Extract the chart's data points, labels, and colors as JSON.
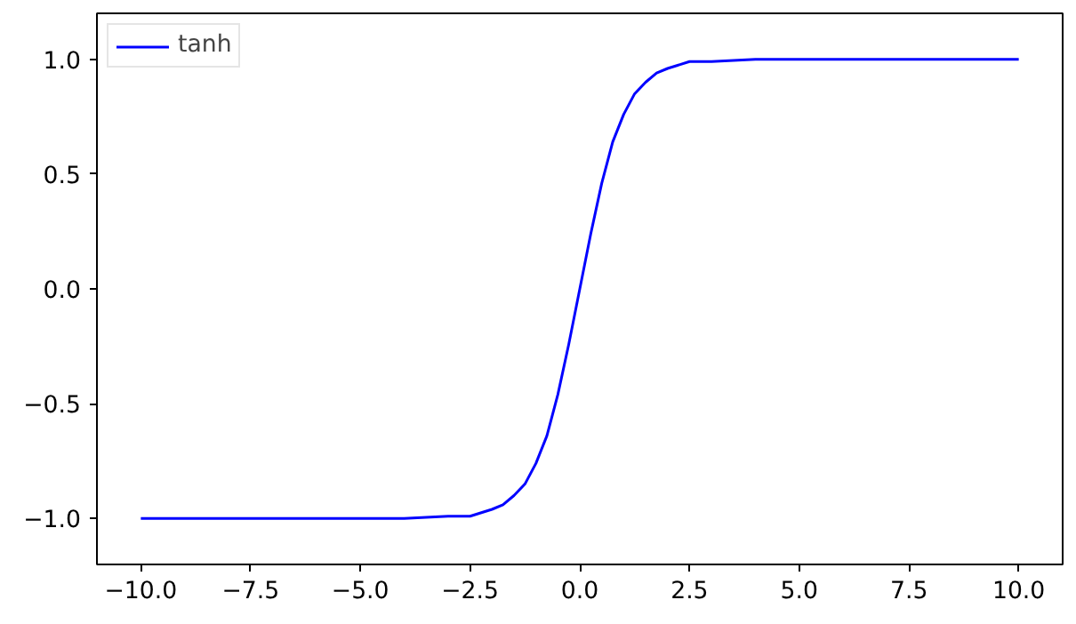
{
  "chart_data": {
    "type": "line",
    "x": [
      -10,
      -7.5,
      -5,
      -4,
      -3,
      -2.5,
      -2,
      -1.75,
      -1.5,
      -1.25,
      -1,
      -0.75,
      -0.5,
      -0.25,
      0,
      0.25,
      0.5,
      0.75,
      1,
      1.25,
      1.5,
      1.75,
      2,
      2.5,
      3,
      4,
      5,
      7.5,
      10
    ],
    "series": [
      {
        "name": "tanh",
        "color": "#0000ff",
        "values": [
          -1.0,
          -1.0,
          -1.0,
          -1.0,
          -0.99,
          -0.99,
          -0.96,
          -0.94,
          -0.9,
          -0.85,
          -0.76,
          -0.64,
          -0.46,
          -0.24,
          0.0,
          0.24,
          0.46,
          0.64,
          0.76,
          0.85,
          0.9,
          0.94,
          0.96,
          0.99,
          0.99,
          1.0,
          1.0,
          1.0,
          1.0
        ]
      }
    ],
    "xlim": [
      -11,
      11
    ],
    "ylim": [
      -1.2,
      1.2
    ],
    "xticks": [
      {
        "value": -10,
        "label": "−10.0"
      },
      {
        "value": -7.5,
        "label": "−7.5"
      },
      {
        "value": -5,
        "label": "−5.0"
      },
      {
        "value": -2.5,
        "label": "−2.5"
      },
      {
        "value": 0,
        "label": "0.0"
      },
      {
        "value": 2.5,
        "label": "2.5"
      },
      {
        "value": 5,
        "label": "5.0"
      },
      {
        "value": 7.5,
        "label": "7.5"
      },
      {
        "value": 10,
        "label": "10.0"
      }
    ],
    "yticks": [
      {
        "value": -1,
        "label": "−1.0"
      },
      {
        "value": -0.5,
        "label": "−0.5"
      },
      {
        "value": 0,
        "label": "0.0"
      },
      {
        "value": 0.5,
        "label": "0.5"
      },
      {
        "value": 1,
        "label": "1.0"
      }
    ],
    "legend": "top left",
    "grid": false,
    "marker": "none",
    "line_style": "solid"
  }
}
